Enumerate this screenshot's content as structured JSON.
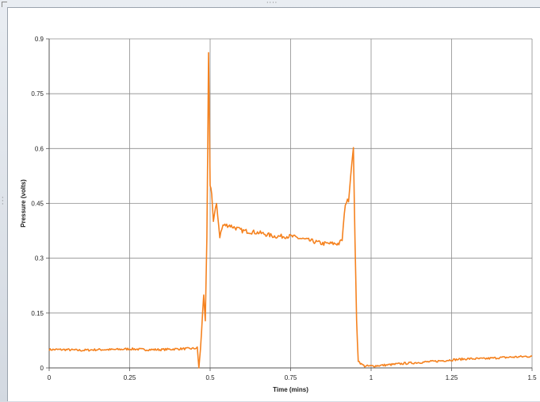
{
  "chart_data": {
    "type": "line",
    "title": "",
    "xlabel": "Time (mins)",
    "ylabel": "Pressure (volts)",
    "xlim": [
      0,
      1.5
    ],
    "ylim": [
      0,
      0.9
    ],
    "x_ticks": [
      "0",
      "0.25",
      "0.5",
      "0.75",
      "1",
      "1.25",
      "1.5"
    ],
    "y_ticks": [
      "0",
      "0.15",
      "0.3",
      "0.45",
      "0.6",
      "0.75",
      "0.9"
    ],
    "grid": true,
    "legend": "none",
    "color": "#f5821f",
    "series": [
      {
        "x": [
          0,
          0.05,
          0.1,
          0.15,
          0.2,
          0.25,
          0.3,
          0.35,
          0.4,
          0.45,
          0.46,
          0.465,
          0.47,
          0.48,
          0.485,
          0.49,
          0.495,
          0.5,
          0.505,
          0.51,
          0.52,
          0.53,
          0.54,
          0.56,
          0.6,
          0.65,
          0.7,
          0.75,
          0.8,
          0.85,
          0.9,
          0.91,
          0.92,
          0.93,
          0.94,
          0.945,
          0.95,
          0.955,
          0.96,
          0.97,
          0.98,
          1.0,
          1.05,
          1.1,
          1.15,
          1.2,
          1.25,
          1.3,
          1.35,
          1.4,
          1.45,
          1.5
        ],
        "y": [
          0.05,
          0.05,
          0.048,
          0.05,
          0.05,
          0.052,
          0.05,
          0.05,
          0.052,
          0.053,
          0.055,
          0.0,
          0.05,
          0.2,
          0.13,
          0.35,
          0.86,
          0.5,
          0.48,
          0.4,
          0.45,
          0.36,
          0.39,
          0.39,
          0.375,
          0.37,
          0.36,
          0.36,
          0.35,
          0.34,
          0.34,
          0.35,
          0.45,
          0.46,
          0.56,
          0.6,
          0.35,
          0.13,
          0.02,
          0.01,
          0.005,
          0.005,
          0.008,
          0.012,
          0.015,
          0.018,
          0.022,
          0.025,
          0.025,
          0.028,
          0.03,
          0.032
        ]
      }
    ]
  }
}
